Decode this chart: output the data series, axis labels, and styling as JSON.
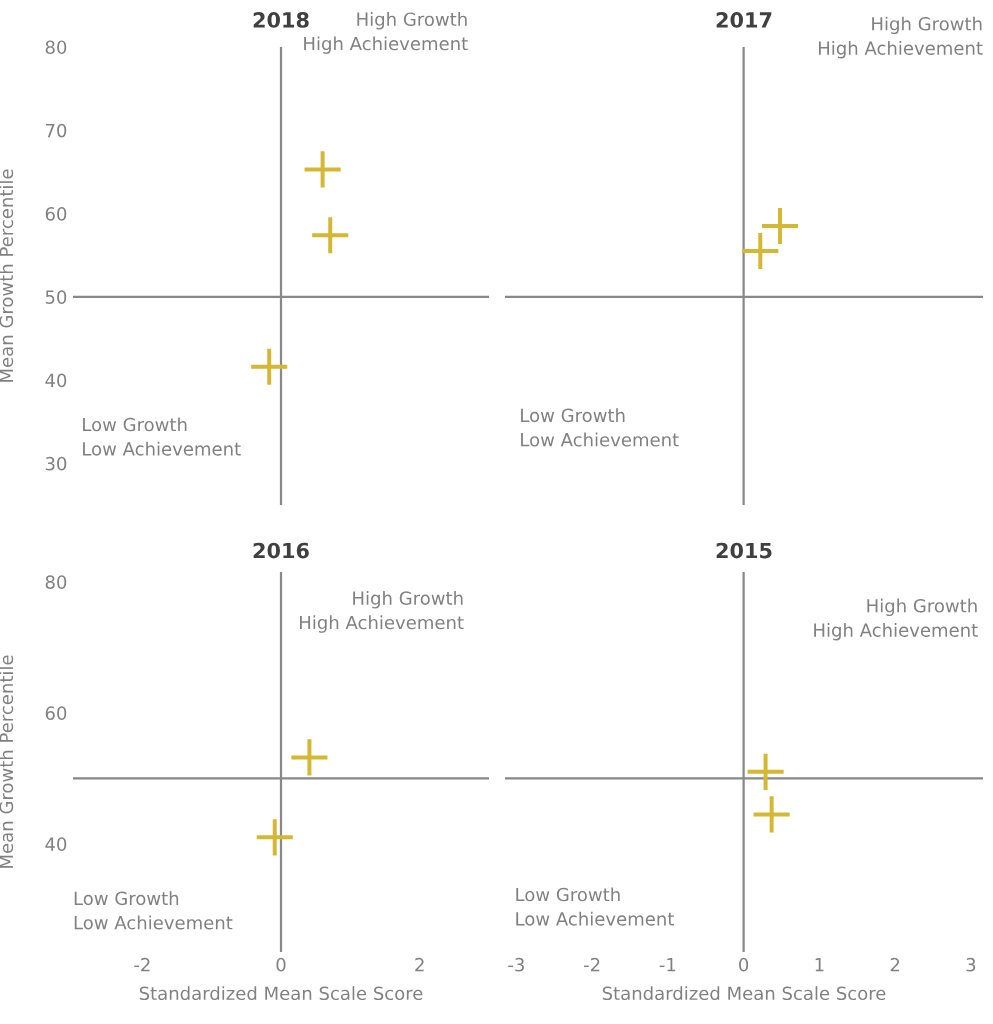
{
  "chart_data": [
    {
      "type": "scatter",
      "title": "2018",
      "ylabel": "Mean Growth Percentile",
      "x": [
        0.6,
        0.71,
        -0.17
      ],
      "values": [
        65.3,
        57.4,
        41.6
      ],
      "color": "#d4b834",
      "marker": "cross",
      "xlim": [
        -3,
        3
      ],
      "ylim": [
        25,
        80
      ],
      "yticks": [
        30,
        40,
        50,
        60,
        70,
        80
      ],
      "tick_labels": "y",
      "ref_lines": [
        {
          "axis": "x",
          "value": 0,
          "color": "#888888"
        },
        {
          "axis": "y",
          "value": 50,
          "color": "#888888"
        }
      ],
      "annotations": [
        "High Growth\nHigh Achievement",
        "Low Growth\nLow Achievement"
      ],
      "grid": false
    },
    {
      "type": "scatter",
      "title": "2017",
      "x": [
        0.48,
        0.22
      ],
      "values": [
        58.5,
        55.5
      ],
      "color": "#d4b834",
      "marker": "cross",
      "xlim": [
        -3.15,
        3.16
      ],
      "ylim": [
        25,
        80
      ],
      "tick_labels": false,
      "ref_lines": [
        {
          "axis": "x",
          "value": 0,
          "color": "#888888"
        },
        {
          "axis": "y",
          "value": 50,
          "color": "#888888"
        }
      ],
      "annotations": [
        "High Growth\nHigh Achievement",
        "Low Growth\nLow Achievement"
      ],
      "grid": false
    },
    {
      "type": "scatter",
      "title": "2016",
      "xlabel": "Standardized Mean Scale Score",
      "ylabel": "Mean Growth Percentile",
      "x": [
        0.41,
        -0.09
      ],
      "values": [
        53.2,
        41.0
      ],
      "color": "#d4b834",
      "marker": "cross",
      "xlim": [
        -3,
        3
      ],
      "ylim": [
        23.5,
        81.5
      ],
      "xticks": [
        -2,
        0,
        2
      ],
      "yticks": [
        40,
        60,
        80
      ],
      "ref_lines": [
        {
          "axis": "x",
          "value": 0,
          "color": "#888888"
        },
        {
          "axis": "y",
          "value": 50,
          "color": "#888888"
        }
      ],
      "annotations": [
        "High Growth\nHigh Achievement",
        "Low Growth\nLow Achievement"
      ],
      "grid": false
    },
    {
      "type": "scatter",
      "title": "2015",
      "xlabel": "Standardized Mean Scale Score",
      "x": [
        0.29,
        0.37
      ],
      "values": [
        51.0,
        44.5
      ],
      "color": "#d4b834",
      "marker": "cross",
      "xlim": [
        -3.15,
        3.16
      ],
      "ylim": [
        23.5,
        81.5
      ],
      "xticks": [
        -3,
        -2,
        -1,
        0,
        1,
        2,
        3
      ],
      "tick_labels": "x",
      "ref_lines": [
        {
          "axis": "x",
          "value": 0,
          "color": "#888888"
        },
        {
          "axis": "y",
          "value": 50,
          "color": "#888888"
        }
      ],
      "annotations": [
        "High Growth\nHigh Achievement",
        "Low Growth\nLow Achievement"
      ],
      "grid": false
    }
  ]
}
